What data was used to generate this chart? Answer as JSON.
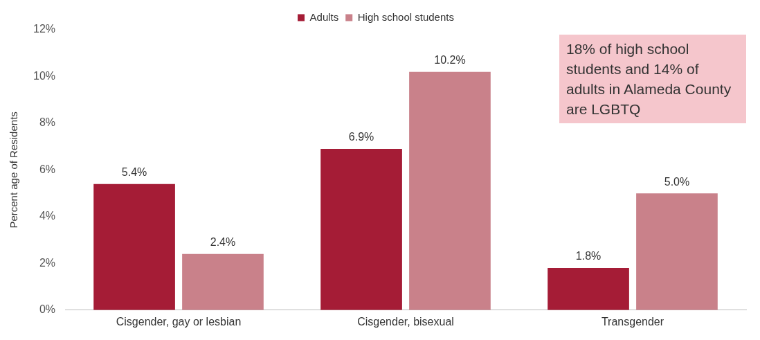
{
  "chart_data": {
    "type": "bar",
    "ylabel": "Percent age of Residents",
    "categories": [
      "Cisgender, gay or lesbian",
      "Cisgender, bisexual",
      "Transgender"
    ],
    "series": [
      {
        "name": "Adults",
        "color": "#a51c36",
        "values": [
          5.4,
          6.9,
          1.8
        ],
        "value_labels": [
          "5.4%",
          "6.9%",
          "1.8%"
        ]
      },
      {
        "name": "High school students",
        "color": "#c9818a",
        "values": [
          2.4,
          10.2,
          5.0
        ],
        "value_labels": [
          "2.4%",
          "10.2%",
          "5.0%"
        ]
      }
    ],
    "ylim": [
      0,
      12
    ],
    "yticks": [
      {
        "value": 0,
        "label": "0%"
      },
      {
        "value": 2,
        "label": "2%"
      },
      {
        "value": 4,
        "label": "4%"
      },
      {
        "value": 6,
        "label": "6%"
      },
      {
        "value": 8,
        "label": "8%"
      },
      {
        "value": 10,
        "label": "10%"
      },
      {
        "value": 12,
        "label": "12%"
      }
    ],
    "grid": false,
    "legend": "top",
    "annotations": [
      "18% of high school students and 14% of adults in Alameda County are LGBTQ"
    ]
  }
}
